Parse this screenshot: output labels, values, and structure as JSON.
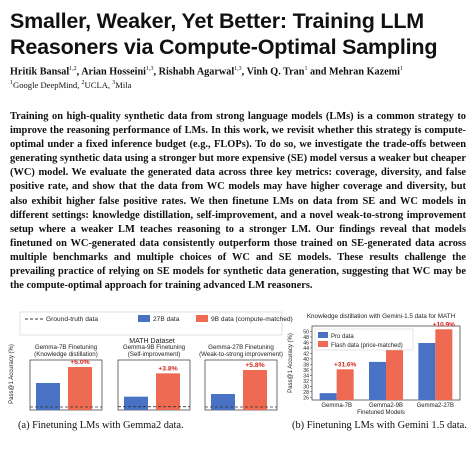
{
  "paper": {
    "title_line1": "Smaller, Weaker, Yet Better: Training LLM",
    "title_line2": "Reasoners via Compute-Optimal Sampling",
    "authors": [
      {
        "name": "Hritik Bansal",
        "aff": "1,2"
      },
      {
        "name": "Arian Hosseini",
        "aff": "1,3"
      },
      {
        "name": "Rishabh Agarwal",
        "aff": "1,3"
      },
      {
        "name": "Vinh Q. Tran",
        "aff": "1"
      },
      {
        "name": "Mehran Kazemi",
        "aff": "1"
      }
    ],
    "affiliations": [
      {
        "num": "1",
        "name": "Google DeepMind"
      },
      {
        "num": "2",
        "name": "UCLA"
      },
      {
        "num": "3",
        "name": "Mila"
      }
    ],
    "abstract": "Training on high-quality synthetic data from strong language models (LMs) is a common strategy to improve the reasoning performance of LMs. In this work, we revisit whether this strategy is compute-optimal under a fixed inference budget (e.g., FLOPs). To do so, we investigate the trade-offs between generating synthetic data using a stronger but more expensive (SE) model versus a weaker but cheaper (WC) model. We evaluate the generated data across three key metrics: coverage, diversity, and false positive rate, and show that the data from WC models may have higher coverage and diversity, but also exhibit higher false positive rates. We then finetune LMs on data from SE and WC models in different settings: knowledge distillation, self-improvement, and a novel weak-to-strong improvement setup where a weaker LM teaches reasoning to a stronger LM. Our findings reveal that models finetuned on WC-generated data consistently outperform those trained on SE-generated data across multiple benchmarks and multiple choices of WC and SE models. These results challenge the prevailing practice of relying on SE models for synthetic data generation, suggesting that WC may be the compute-optimal approach for training advanced LM reasoners."
  },
  "colors": {
    "blue": "#4a72c4",
    "orange": "#ee6a52",
    "gain": "#d4271b",
    "dashed": "#333333"
  },
  "figure_left": {
    "legend": {
      "ground_truth": "Ground-truth data",
      "series_27b": "27B data",
      "series_9b": "9B data (compute-matched)"
    },
    "suptitle": "MATH Dataset",
    "ylabel": "Pass@1 Accuracy (%)",
    "caption": "(a) Finetuning LMs with Gemma2 data."
  },
  "figure_right": {
    "title": "Knowledge distillation with Gemini-1.5 data for MATH",
    "legend": {
      "pro": "Pro data",
      "flash": "Flash data (price-matched)"
    },
    "ylabel": "Pass@1 Accuracy (%)",
    "xlabel": "Finetuned Models",
    "caption": "(b) Finetuning LMs with Gemini 1.5 data."
  },
  "chart_data": [
    {
      "type": "bar",
      "title": "Gemma-7B Finetuning (Knowledge distillation)",
      "title_lines": [
        "Gemma-7B Finetuning",
        "(Knowledge distillation)"
      ],
      "series": [
        {
          "name": "27B data",
          "values": [
            26.7
          ]
        },
        {
          "name": "9B data (compute-matched)",
          "values": [
            28.3
          ]
        }
      ],
      "baseline": {
        "name": "Ground-truth data",
        "value": 24.3
      },
      "annotation": "+6.0%",
      "ylim": [
        24.0,
        29.0
      ]
    },
    {
      "type": "bar",
      "title": "Gemma-9B Finetuning (Self-improvement)",
      "title_lines": [
        "Gemma-9B Finetuning",
        "(Self-improvement)"
      ],
      "series": [
        {
          "name": "27B data",
          "values": [
            36.4
          ]
        },
        {
          "name": "9B data (compute-matched)",
          "values": [
            37.8
          ]
        }
      ],
      "baseline": {
        "name": "Ground-truth data",
        "value": 35.8
      },
      "annotation": "+3.8%",
      "ylim": [
        35.6,
        38.6
      ]
    },
    {
      "type": "bar",
      "title": "Gemma-27B Finetuning (Weak-to-strong improvement)",
      "title_lines": [
        "Gemma-27B Finetuning",
        "(Weak-to-strong improvement)"
      ],
      "series": [
        {
          "name": "27B data",
          "values": [
            41.0
          ]
        },
        {
          "name": "9B data (compute-matched)",
          "values": [
            43.4
          ]
        }
      ],
      "baseline": {
        "name": "Ground-truth data",
        "value": 39.7
      },
      "annotation": "+5.8%",
      "ylim": [
        39.4,
        44.4
      ]
    },
    {
      "type": "bar",
      "title": "Knowledge distillation with Gemini-1.5 data for MATH",
      "categories": [
        "Gemma-7B",
        "Gemma2-9B",
        "Gemma2-27B"
      ],
      "series": [
        {
          "name": "Pro data",
          "values": [
            27.5,
            38.9,
            45.8
          ]
        },
        {
          "name": "Flash data (price-matched)",
          "values": [
            36.2,
            44.5,
            50.8
          ]
        }
      ],
      "annotations": [
        "+31.6%",
        "+14.4%",
        "+10.9%"
      ],
      "ylabel": "Pass@1 Accuracy (%)",
      "xlabel": "Finetuned Models",
      "yticks": [
        26,
        28,
        30,
        32,
        34,
        36,
        38,
        40,
        42,
        44,
        46,
        48,
        50
      ],
      "ylim": [
        25,
        52
      ]
    }
  ]
}
